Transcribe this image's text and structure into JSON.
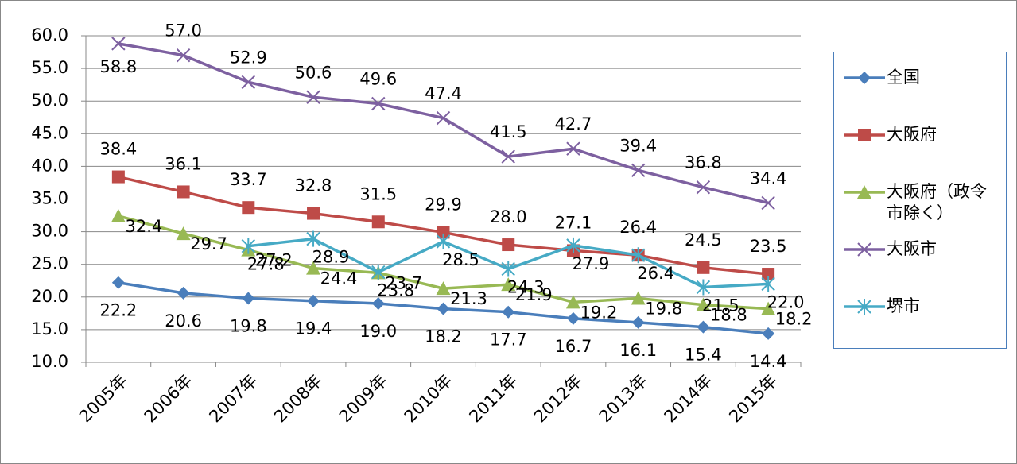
{
  "chart_data": {
    "type": "line",
    "categories": [
      "2005年",
      "2006年",
      "2007年",
      "2008年",
      "2009年",
      "2010年",
      "2011年",
      "2012年",
      "2013年",
      "2014年",
      "2015年"
    ],
    "ylim": [
      10,
      60
    ],
    "yticks": [
      {
        "value": 10,
        "label": "10.0"
      },
      {
        "value": 15,
        "label": "15.0"
      },
      {
        "value": 20,
        "label": "20.0"
      },
      {
        "value": 25,
        "label": "25.0"
      },
      {
        "value": 30,
        "label": "30.0"
      },
      {
        "value": 35,
        "label": "35.0"
      },
      {
        "value": 40,
        "label": "40.0"
      },
      {
        "value": 45,
        "label": "45.0"
      },
      {
        "value": 50,
        "label": "50.0"
      },
      {
        "value": 55,
        "label": "55.0"
      },
      {
        "value": 60,
        "label": "60.0"
      }
    ],
    "grid": true,
    "series": [
      {
        "name": "全国",
        "color": "#4a7ebb",
        "marker": "diamond",
        "values": [
          22.2,
          20.6,
          19.8,
          19.4,
          19.0,
          18.2,
          17.7,
          16.7,
          16.1,
          15.4,
          14.4
        ],
        "value_labels": [
          "22.2",
          "20.6",
          "19.8",
          "19.4",
          "19.0",
          "18.2",
          "17.7",
          "16.7",
          "16.1",
          "15.4",
          "14.4"
        ]
      },
      {
        "name": "大阪府",
        "color": "#be4b48",
        "marker": "square",
        "values": [
          38.4,
          36.1,
          33.7,
          32.8,
          31.5,
          29.9,
          28.0,
          27.1,
          26.4,
          24.5,
          23.5
        ],
        "value_labels": [
          "38.4",
          "36.1",
          "33.7",
          "32.8",
          "31.5",
          "29.9",
          "28.0",
          "27.1",
          "26.4",
          "24.5",
          "23.5"
        ]
      },
      {
        "name": "大阪府（政令市除く）",
        "color": "#98b954",
        "marker": "triangle",
        "values": [
          32.4,
          29.7,
          27.2,
          24.4,
          23.7,
          21.3,
          21.9,
          19.2,
          19.8,
          18.8,
          18.2
        ],
        "value_labels": [
          "32.4",
          "29.7",
          "27.2",
          "24.4",
          "23.7",
          "21.3",
          "21.9",
          "19.2",
          "19.8",
          "18.8",
          "18.2"
        ]
      },
      {
        "name": "大阪市",
        "color": "#7d60a0",
        "marker": "x",
        "values": [
          58.8,
          57.0,
          52.9,
          50.6,
          49.6,
          47.4,
          41.5,
          42.7,
          39.4,
          36.8,
          34.4
        ],
        "value_labels": [
          "58.8",
          "57.0",
          "52.9",
          "50.6",
          "49.6",
          "47.4",
          "41.5",
          "42.7",
          "39.4",
          "36.8",
          "34.4"
        ]
      },
      {
        "name": "堺市",
        "color": "#46aac5",
        "marker": "star",
        "values": [
          null,
          null,
          27.8,
          28.9,
          23.8,
          28.5,
          24.3,
          27.9,
          26.4,
          21.5,
          22.0
        ],
        "value_labels": [
          null,
          null,
          "27.8",
          "28.9",
          "23.8",
          "28.5",
          "24.3",
          "27.9",
          "26.4",
          "21.5",
          "22.0"
        ]
      }
    ]
  }
}
